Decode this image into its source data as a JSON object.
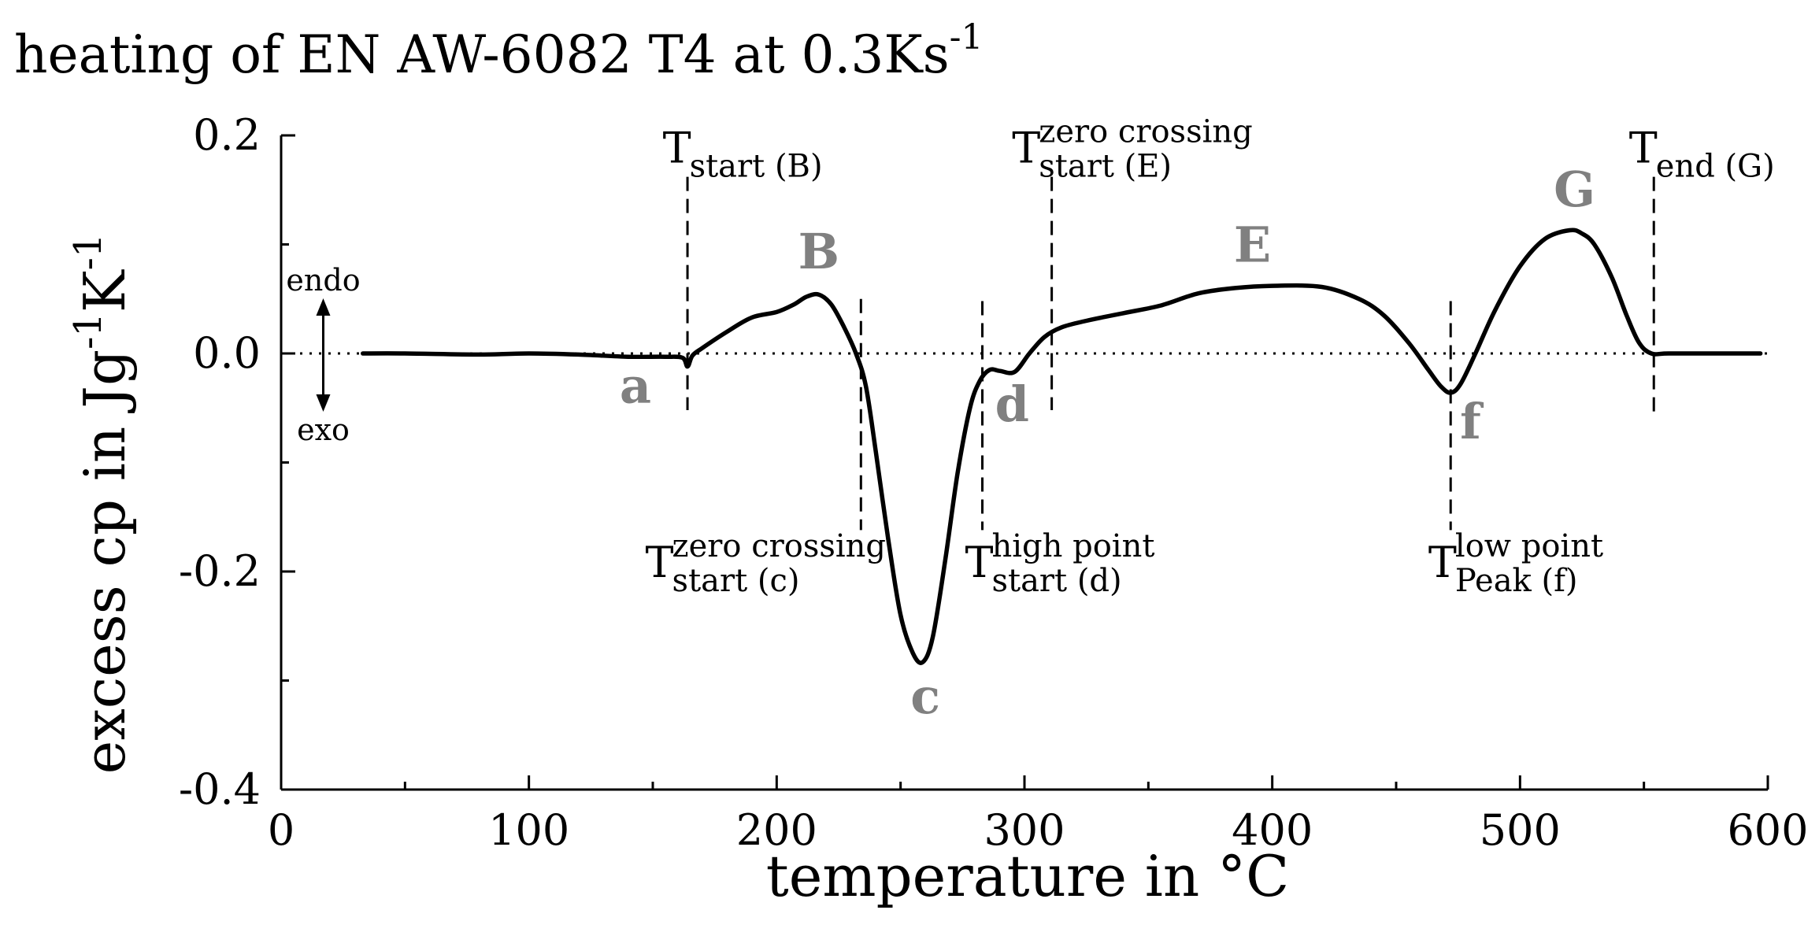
{
  "chart_data": {
    "type": "line",
    "title": "heating of EN AW-6082 T4  at 0.3Ks",
    "title_superscript": "-1",
    "xlabel": "temperature in °C",
    "ylabel_parts": [
      "excess cp  in Jg",
      "-1",
      "K",
      "-1"
    ],
    "xlim": [
      0,
      600
    ],
    "ylim": [
      -0.4,
      0.2
    ],
    "xticks": [
      0,
      100,
      200,
      300,
      400,
      500,
      600
    ],
    "xtick_labels": [
      "0",
      "100",
      "200",
      "300",
      "400",
      "500",
      "600"
    ],
    "yticks": [
      -0.4,
      -0.2,
      0.0,
      0.2
    ],
    "ytick_labels": [
      "-0.4",
      "-0.2",
      "0.0",
      "0.2"
    ],
    "zero_line": {
      "style": "dotted",
      "y": 0.0
    },
    "series": [
      {
        "name": "excess cp",
        "x": [
          33,
          50,
          80,
          100,
          120,
          140,
          155,
          162,
          164,
          166,
          170,
          180,
          190,
          200,
          207,
          212,
          217,
          222,
          227,
          232,
          236,
          240,
          245,
          250,
          255,
          259,
          263,
          268,
          273,
          278,
          282,
          286,
          290,
          296,
          302,
          308,
          315,
          325,
          340,
          355,
          370,
          385,
          400,
          420,
          435,
          445,
          455,
          463,
          468,
          472,
          476,
          482,
          490,
          500,
          510,
          520,
          525,
          530,
          537,
          543,
          548,
          553,
          560,
          580,
          597
        ],
        "values": [
          0.0,
          0.0,
          -0.001,
          0.0,
          -0.001,
          -0.003,
          -0.003,
          -0.004,
          -0.012,
          -0.002,
          0.005,
          0.02,
          0.033,
          0.038,
          0.045,
          0.052,
          0.054,
          0.045,
          0.025,
          0.0,
          -0.03,
          -0.09,
          -0.17,
          -0.24,
          -0.275,
          -0.283,
          -0.26,
          -0.19,
          -0.11,
          -0.05,
          -0.025,
          -0.015,
          -0.016,
          -0.017,
          0.0,
          0.015,
          0.024,
          0.03,
          0.037,
          0.044,
          0.055,
          0.06,
          0.062,
          0.061,
          0.05,
          0.035,
          0.01,
          -0.015,
          -0.03,
          -0.036,
          -0.028,
          0.0,
          0.04,
          0.08,
          0.105,
          0.113,
          0.11,
          0.1,
          0.07,
          0.035,
          0.01,
          0.0,
          0.0,
          0.0,
          0.0
        ]
      }
    ],
    "peak_labels": [
      {
        "text": "a",
        "x": 143,
        "y": -0.045
      },
      {
        "text": "B",
        "x": 217,
        "y": 0.078
      },
      {
        "text": "c",
        "x": 260,
        "y": -0.33
      },
      {
        "text": "d",
        "x": 295,
        "y": -0.062
      },
      {
        "text": "E",
        "x": 392,
        "y": 0.084
      },
      {
        "text": "f",
        "x": 480,
        "y": -0.078
      },
      {
        "text": "G",
        "x": 522,
        "y": 0.135
      }
    ],
    "vlines": [
      {
        "x": 164,
        "y_top": 0.162,
        "y_bottom": -0.052
      },
      {
        "x": 234,
        "y_top": 0.05,
        "y_bottom": -0.162
      },
      {
        "x": 283,
        "y_top": 0.048,
        "y_bottom": -0.162
      },
      {
        "x": 311,
        "y_top": 0.162,
        "y_bottom": -0.052
      },
      {
        "x": 472,
        "y_top": 0.048,
        "y_bottom": -0.162
      },
      {
        "x": 554,
        "y_top": 0.162,
        "y_bottom": -0.058
      }
    ],
    "annotations": [
      {
        "main": "T",
        "sup": "",
        "sub": "start (B)",
        "x": 154,
        "y": 0.175
      },
      {
        "main": "T",
        "sup": "zero crossing",
        "sub": "start (c)",
        "x": 147,
        "y": -0.205
      },
      {
        "main": "T",
        "sup": "high point",
        "sub": "start (d)",
        "x": 276,
        "y": -0.205
      },
      {
        "main": "T",
        "sup": "zero crossing",
        "sub": "start (E)",
        "x": 295,
        "y": 0.175
      },
      {
        "main": "T",
        "sup": "low point",
        "sub": "Peak (f)",
        "x": 463,
        "y": -0.205
      },
      {
        "main": "T",
        "sup": "",
        "sub": "end (G)",
        "x": 544,
        "y": 0.175
      }
    ],
    "endo_exo": {
      "endo": "endo",
      "exo": "exo",
      "x": 17
    }
  }
}
